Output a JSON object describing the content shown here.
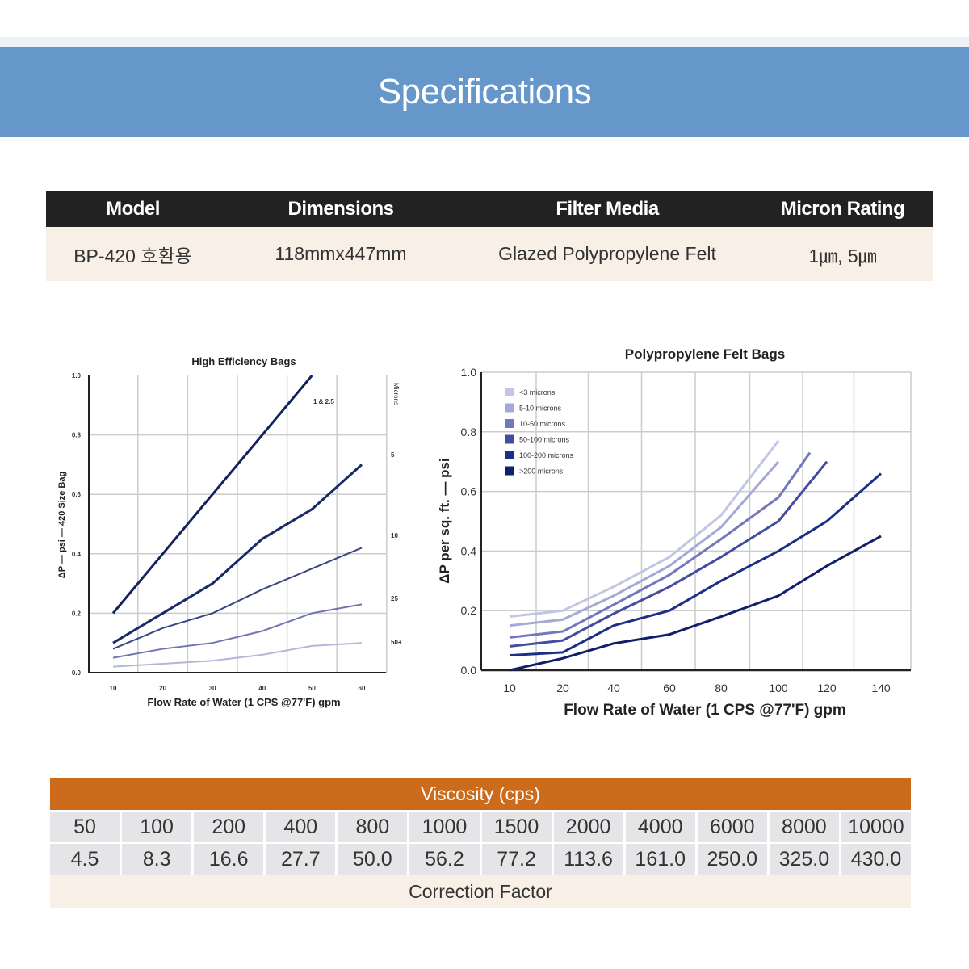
{
  "banner": {
    "title": "Specifications"
  },
  "spec_table": {
    "headers": [
      "Model",
      "Dimensions",
      "Filter Media",
      "Micron Rating"
    ],
    "row": [
      "BP-420 호환용",
      "118mmx447mm",
      "Glazed Polypropylene Felt",
      "1㎛, 5㎛"
    ]
  },
  "chart_data": [
    {
      "type": "line",
      "title": "High Efficiency Bags",
      "xlabel": "Flow Rate of Water (1 CPS @77'F) gpm",
      "ylabel": "ΔP — psi — 420 Size Bag",
      "right_axis_label": "Microns",
      "xticks": [
        10,
        20,
        30,
        40,
        50,
        60
      ],
      "yticks": [
        "0.0",
        "0.2",
        "0.4",
        "0.6",
        "0.8",
        "1.0"
      ],
      "xlim": [
        10,
        60
      ],
      "ylim": [
        0,
        1.0
      ],
      "series": [
        {
          "name": "1 & 2.5",
          "color": "#14225e",
          "x": [
            10,
            20,
            30,
            40,
            50
          ],
          "y": [
            0.2,
            0.4,
            0.6,
            0.8,
            1.0
          ]
        },
        {
          "name": "5",
          "color": "#1a2a66",
          "x": [
            10,
            20,
            30,
            40,
            50,
            60
          ],
          "y": [
            0.1,
            0.2,
            0.3,
            0.45,
            0.55,
            0.7
          ]
        },
        {
          "name": "10",
          "color": "#3b4585",
          "x": [
            10,
            20,
            30,
            40,
            50,
            60
          ],
          "y": [
            0.08,
            0.15,
            0.2,
            0.28,
            0.35,
            0.42
          ]
        },
        {
          "name": "25",
          "color": "#7076b0",
          "x": [
            10,
            20,
            30,
            40,
            50,
            60
          ],
          "y": [
            0.05,
            0.08,
            0.1,
            0.14,
            0.2,
            0.23
          ]
        },
        {
          "name": "50+",
          "color": "#b4b6dc",
          "x": [
            10,
            20,
            30,
            40,
            50,
            60
          ],
          "y": [
            0.02,
            0.03,
            0.04,
            0.06,
            0.09,
            0.1
          ]
        }
      ]
    },
    {
      "type": "line",
      "title": "Polypropylene Felt Bags",
      "xlabel": "Flow Rate of Water (1 CPS @77'F) gpm",
      "ylabel": "ΔP per sq. ft. — psi",
      "xticks": [
        10,
        20,
        40,
        60,
        80,
        100,
        120,
        140
      ],
      "yticks": [
        "0.0",
        "0.2",
        "0.4",
        "0.6",
        "0.8",
        "1.0"
      ],
      "ylim": [
        0,
        1.0
      ],
      "legend_position": "top-left",
      "series": [
        {
          "name": "<3 microns",
          "color": "#c3c5e4",
          "x": [
            10,
            20,
            40,
            60,
            80,
            100
          ],
          "y": [
            0.18,
            0.2,
            0.28,
            0.38,
            0.52,
            0.77
          ]
        },
        {
          "name": "5-10 microns",
          "color": "#a5a8d6",
          "x": [
            10,
            20,
            40,
            60,
            80,
            100
          ],
          "y": [
            0.15,
            0.17,
            0.25,
            0.35,
            0.48,
            0.7
          ]
        },
        {
          "name": "10-50 microns",
          "color": "#7378bd",
          "x": [
            10,
            20,
            40,
            60,
            80,
            100,
            113
          ],
          "y": [
            0.11,
            0.13,
            0.22,
            0.32,
            0.44,
            0.58,
            0.73
          ]
        },
        {
          "name": "50-100 microns",
          "color": "#424d9e",
          "x": [
            10,
            20,
            40,
            60,
            80,
            100,
            120
          ],
          "y": [
            0.08,
            0.1,
            0.19,
            0.28,
            0.38,
            0.5,
            0.7
          ]
        },
        {
          "name": "100-200 microns",
          "color": "#1c2f84",
          "x": [
            10,
            20,
            40,
            60,
            80,
            100,
            120,
            140
          ],
          "y": [
            0.05,
            0.06,
            0.15,
            0.2,
            0.3,
            0.4,
            0.5,
            0.66
          ]
        },
        {
          "name": ">200 microns",
          "color": "#0f1f6a",
          "x": [
            10,
            20,
            40,
            60,
            80,
            100,
            120,
            140
          ],
          "y": [
            0.0,
            0.04,
            0.09,
            0.12,
            0.18,
            0.25,
            0.35,
            0.45
          ]
        }
      ]
    }
  ],
  "viscosity": {
    "title": "Viscosity (cps)",
    "cps": [
      "50",
      "100",
      "200",
      "400",
      "800",
      "1000",
      "1500",
      "2000",
      "4000",
      "6000",
      "8000",
      "10000"
    ],
    "factors": [
      "4.5",
      "8.3",
      "16.6",
      "27.7",
      "50.0",
      "56.2",
      "77.2",
      "113.6",
      "161.0",
      "250.0",
      "325.0",
      "430.0"
    ],
    "footer": "Correction Factor"
  }
}
